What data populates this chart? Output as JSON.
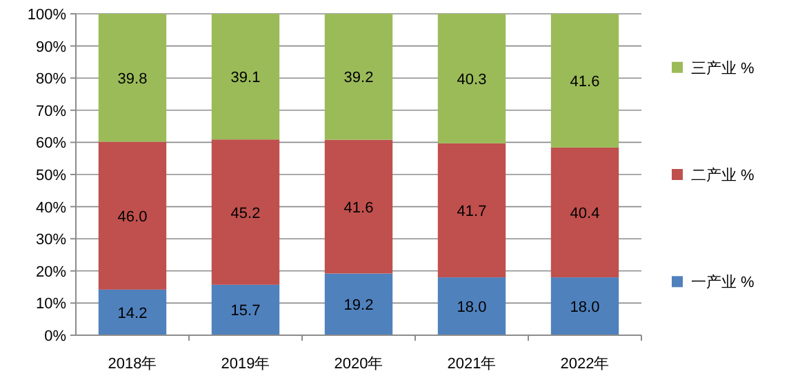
{
  "chart_data": {
    "type": "bar",
    "stacked": true,
    "categories": [
      "2018年",
      "2019年",
      "2020年",
      "2021年",
      "2022年"
    ],
    "series": [
      {
        "name": "一产业 %",
        "color": "#4f81bd",
        "values": [
          14.2,
          15.7,
          19.2,
          18.0,
          18.0
        ],
        "value_labels": [
          "14.2",
          "15.7",
          "19.2",
          "18.0",
          "18.0"
        ]
      },
      {
        "name": "二产业 %",
        "color": "#c0504d",
        "values": [
          46.0,
          45.2,
          41.6,
          41.7,
          40.4
        ],
        "value_labels": [
          "46.0",
          "45.2",
          "41.6",
          "41.7",
          "40.4"
        ]
      },
      {
        "name": "三产业 %",
        "color": "#9bbb59",
        "values": [
          39.8,
          39.1,
          39.2,
          40.3,
          41.6
        ],
        "value_labels": [
          "39.8",
          "39.1",
          "39.2",
          "40.3",
          "41.6"
        ]
      }
    ],
    "ylim": [
      0,
      100
    ],
    "yticks": [
      {
        "value": 0,
        "label": "0%"
      },
      {
        "value": 10,
        "label": "10%"
      },
      {
        "value": 20,
        "label": "20%"
      },
      {
        "value": 30,
        "label": "30%"
      },
      {
        "value": 40,
        "label": "40%"
      },
      {
        "value": 50,
        "label": "50%"
      },
      {
        "value": 60,
        "label": "60%"
      },
      {
        "value": 70,
        "label": "70%"
      },
      {
        "value": 80,
        "label": "80%"
      },
      {
        "value": 90,
        "label": "90%"
      },
      {
        "value": 100,
        "label": "100%"
      }
    ],
    "grid": "y",
    "legend": "right"
  }
}
